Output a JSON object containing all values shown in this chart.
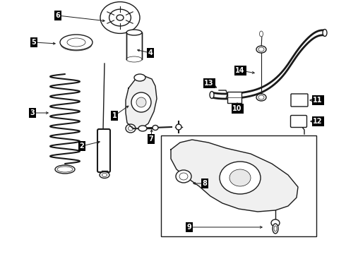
{
  "bg_color": "#ffffff",
  "line_color": "#1a1a1a",
  "fig_width": 4.9,
  "fig_height": 3.6,
  "dpi": 100
}
